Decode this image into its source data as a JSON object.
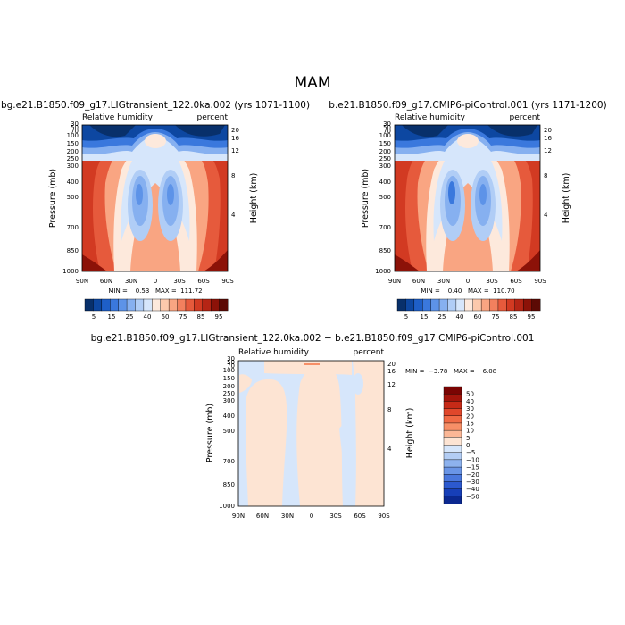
{
  "figure": {
    "season": "MAM"
  },
  "chart_data": [
    {
      "type": "heatmap",
      "title": "bg.e21.B1850.f09_g17.LIGtransient_122.0ka.002 (yrs 1071-1100)",
      "field_label": "Relative humidity",
      "units_label": "percent",
      "ylabel": "Pressure (mb)",
      "ylabel_right": "Height (km)",
      "xticks": [
        "90N",
        "60N",
        "30N",
        "0",
        "30S",
        "60S",
        "90S"
      ],
      "yticks": [
        "1000",
        "850",
        "700",
        "500",
        "400",
        "300",
        "250",
        "200",
        "150",
        "100",
        "70",
        "50",
        "30"
      ],
      "yticks_right": [
        "4",
        "8",
        "12",
        "16",
        "20"
      ],
      "stats_text": "MIN =    0.53   MAX =  111.72",
      "min": 0.53,
      "max": 111.72,
      "colorbar_labels": [
        "5",
        "15",
        "25",
        "40",
        "60",
        "75",
        "85",
        "95"
      ],
      "colors": [
        "#08306b",
        "#0d47a1",
        "#1e5fc8",
        "#3a78dd",
        "#5d93e8",
        "#86b0f0",
        "#b0cdf6",
        "#d6e6fb",
        "#fde9dc",
        "#fcc9ac",
        "#f9a582",
        "#f2805e",
        "#e65a3c",
        "#d23a22",
        "#b52515",
        "#8c1208",
        "#5c0a05"
      ]
    },
    {
      "type": "heatmap",
      "title": "b.e21.B1850.f09_g17.CMIP6-piControl.001 (yrs 1171-1200)",
      "field_label": "Relative humidity",
      "units_label": "percent",
      "ylabel": "Pressure (mb)",
      "ylabel_right": "Height (km)",
      "xticks": [
        "90N",
        "60N",
        "30N",
        "0",
        "30S",
        "60S",
        "90S"
      ],
      "yticks": [
        "1000",
        "850",
        "700",
        "500",
        "400",
        "300",
        "250",
        "200",
        "150",
        "100",
        "70",
        "50",
        "30"
      ],
      "yticks_right": [
        "4",
        "8",
        "12",
        "16",
        "20"
      ],
      "stats_text": "MIN =    0.40   MAX =  110.70",
      "min": 0.4,
      "max": 110.7,
      "colorbar_labels": [
        "5",
        "15",
        "25",
        "40",
        "60",
        "75",
        "85",
        "95"
      ],
      "colors": [
        "#08306b",
        "#0d47a1",
        "#1e5fc8",
        "#3a78dd",
        "#5d93e8",
        "#86b0f0",
        "#b0cdf6",
        "#d6e6fb",
        "#fde9dc",
        "#fcc9ac",
        "#f9a582",
        "#f2805e",
        "#e65a3c",
        "#d23a22",
        "#b52515",
        "#8c1208",
        "#5c0a05"
      ]
    },
    {
      "type": "heatmap",
      "title": "bg.e21.B1850.f09_g17.LIGtransient_122.0ka.002 − b.e21.B1850.f09_g17.CMIP6-piControl.001",
      "field_label": "Relative humidity",
      "units_label": "percent",
      "ylabel": "Pressure (mb)",
      "ylabel_right": "Height (km)",
      "xticks": [
        "90N",
        "60N",
        "30N",
        "0",
        "30S",
        "60S",
        "90S"
      ],
      "yticks": [
        "1000",
        "850",
        "700",
        "500",
        "400",
        "300",
        "250",
        "200",
        "150",
        "100",
        "70",
        "50",
        "30"
      ],
      "yticks_right": [
        "4",
        "8",
        "12",
        "16",
        "20"
      ],
      "stats_text": "MIN =  −3.78   MAX =    6.08",
      "min": -3.78,
      "max": 6.08,
      "colorbar_labels": [
        "50",
        "40",
        "30",
        "20",
        "15",
        "10",
        "5",
        "0",
        "−5",
        "−10",
        "−15",
        "−20",
        "−30",
        "−40",
        "−50"
      ],
      "colors": [
        "#7a0403",
        "#a3140b",
        "#c62a17",
        "#e0472b",
        "#f06a45",
        "#f78f67",
        "#fbb796",
        "#fde4d3",
        "#d6e6fb",
        "#b3cdf4",
        "#8db2ee",
        "#6a95e6",
        "#4a77dc",
        "#2c59cf",
        "#173fb8",
        "#0b2890"
      ]
    }
  ]
}
